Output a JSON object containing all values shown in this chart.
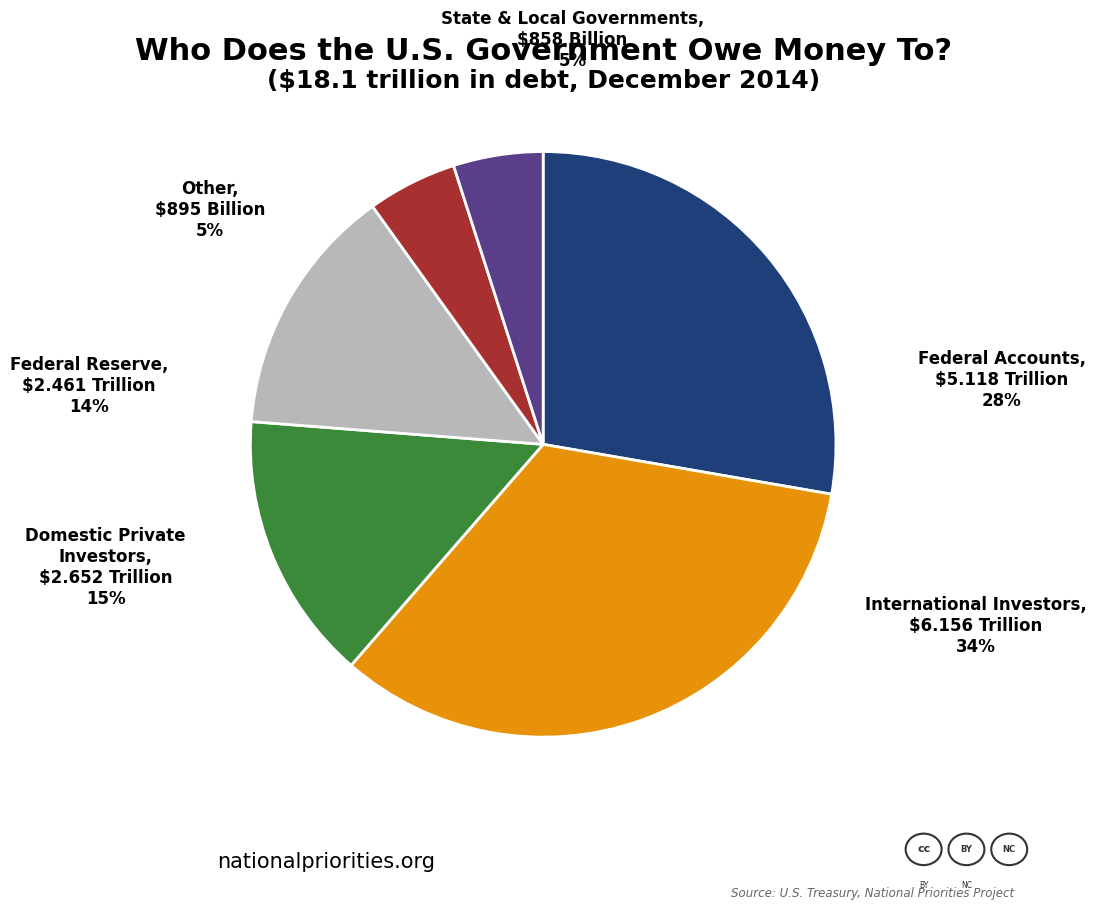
{
  "title_line1": "Who Does the U.S. Government Owe Money To?",
  "title_line2": "($18.1 trillion in debt, December 2014)",
  "slices": [
    {
      "label": "Federal Accounts,\n$5.118 Trillion\n28%",
      "value": 28,
      "color": "#1F3F7A"
    },
    {
      "label": "International Investors,\n$6.156 Trillion\n34%",
      "value": 34,
      "color": "#E8920A"
    },
    {
      "label": "Domestic Private\nInvestors,\n$2.652 Trillion\n15%",
      "value": 15,
      "color": "#3A8A3A"
    },
    {
      "label": "Federal Reserve,\n$2.461 Trillion\n14%",
      "value": 14,
      "color": "#B8B8B8"
    },
    {
      "label": "Other,\n$895 Billion\n5%",
      "value": 5,
      "color": "#A83030"
    },
    {
      "label": "State & Local Governments,\n$858 Billion\n5%",
      "value": 5,
      "color": "#5B3E8A"
    }
  ],
  "title_fontsize": 22,
  "subtitle_fontsize": 18,
  "label_fontsize": 12,
  "footer_text": "nationalpriorities.org",
  "source_text": "Source: U.S. Treasury, National Priorities Project",
  "bg_color": "#FFFFFF",
  "footer_line_color": "#4CAF78",
  "npp_box_color": "#2E8B57"
}
